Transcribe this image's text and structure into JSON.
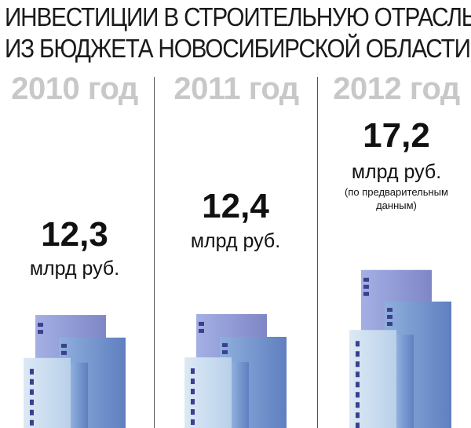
{
  "title": {
    "line1": "ИНВЕСТИЦИИ В СТРОИТЕЛЬНУЮ ОТРАСЛЬ",
    "line2": "ИЗ БЮДЖЕТА НОВОСИБИРСКОЙ ОБЛАСТИ:"
  },
  "columns": [
    {
      "year": "2010 год",
      "value_label": "12,3",
      "unit": "млрд руб.",
      "note": ""
    },
    {
      "year": "2011 год",
      "value_label": "12,4",
      "unit": "млрд руб.",
      "note": ""
    },
    {
      "year": "2012 год",
      "value_label": "17,2",
      "unit": "млрд руб.",
      "note": "(по предварительным данным)"
    }
  ],
  "chart_data": {
    "type": "bar",
    "title": "ИНВЕСТИЦИИ В СТРОИТЕЛЬНУЮ ОТРАСЛЬ ИЗ БЮДЖЕТА НОВОСИБИРСКОЙ ОБЛАСТИ:",
    "categories": [
      "2010 год",
      "2011 год",
      "2012 год"
    ],
    "values": [
      12.3,
      12.4,
      17.2
    ],
    "unit": "млрд руб.",
    "annotations": [
      "(по предварительным данным)"
    ]
  },
  "colors": {
    "year_text": "#c8c8c8",
    "building_light": "#dce9f5",
    "building_mid": "#8fb0dd",
    "building_dark": "#7f86c6",
    "window": "#3c3f8e"
  }
}
